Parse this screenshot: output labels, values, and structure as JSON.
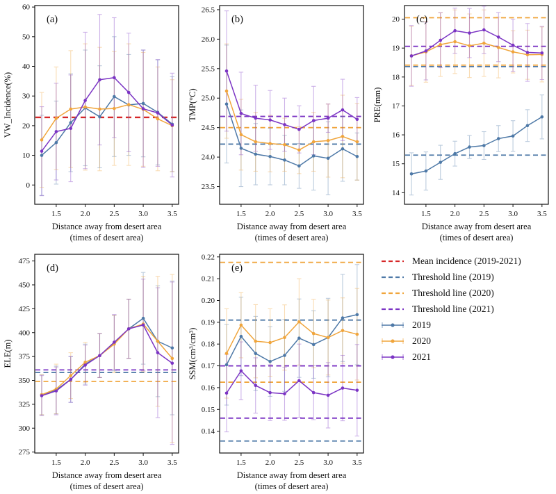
{
  "colors": {
    "s2019": "#4e79a7",
    "s2020": "#f0a53c",
    "s2021": "#7b34c4",
    "mean": "#d62728",
    "axis": "#111111"
  },
  "legend": {
    "items": [
      {
        "type": "dash",
        "color": "mean",
        "label": "Mean incidence (2019-2021)"
      },
      {
        "type": "dash",
        "color": "s2019",
        "label": "Threshold line (2019)"
      },
      {
        "type": "dash",
        "color": "s2020",
        "label": "Threshold line (2020)"
      },
      {
        "type": "dash",
        "color": "s2021",
        "label": "Threshold line (2021)"
      },
      {
        "type": "series",
        "color": "s2019",
        "label": "2019"
      },
      {
        "type": "series",
        "color": "s2020",
        "label": "2020"
      },
      {
        "type": "series",
        "color": "s2021",
        "label": "2021"
      }
    ]
  },
  "chart_data": {
    "shared": {
      "type": "line",
      "x": [
        1.25,
        1.5,
        1.75,
        2.0,
        2.25,
        2.5,
        2.75,
        3.0,
        3.25,
        3.5
      ],
      "xlim": [
        1.13,
        3.61
      ],
      "xticks": [
        1.5,
        2.0,
        2.5,
        3.0,
        3.5
      ],
      "xtick_labels": [
        "1.5",
        "2.0",
        "2.5",
        "3.0",
        "3.5"
      ],
      "xlabel": [
        "Distance away from desert area",
        "(times of desert area)"
      ]
    },
    "panels": [
      {
        "id": "a",
        "panel_label": "(a)",
        "ylabel": "VW_Incidence(%)",
        "ylim": [
          -6.5,
          60.5
        ],
        "yticks": [
          0,
          10,
          20,
          30,
          40,
          50,
          60
        ],
        "ytick_labels": [
          "0",
          "10",
          "20",
          "30",
          "40",
          "50",
          "60"
        ],
        "hlines": [
          {
            "color": "mean",
            "y": 22.8,
            "width": 2.4,
            "label": "Mean incidence (2019-2021)"
          }
        ],
        "series": [
          {
            "name": "2019",
            "color": "s2019",
            "values": [
              10.0,
              14.3,
              21.0,
              26.0,
              23.0,
              29.8,
              27.0,
              27.5,
              24.5,
              20.5
            ],
            "errors": [
              13.5,
              14.0,
              16.5,
              19.5,
              17.2,
              20.2,
              17.0,
              18.0,
              17.7,
              16.0
            ]
          },
          {
            "name": "2020",
            "color": "s2020",
            "values": [
              15.2,
              22.5,
              25.6,
              26.3,
              25.6,
              25.8,
              27.1,
              25.5,
              22.3,
              20.0
            ],
            "errors": [
              16.0,
              17.3,
              19.7,
              21.3,
              20.8,
              19.2,
              20.5,
              19.2,
              17.5,
              15.5
            ]
          },
          {
            "name": "2021",
            "color": "s2021",
            "values": [
              11.4,
              18.0,
              19.1,
              28.5,
              35.5,
              36.2,
              31.2,
              25.7,
              24.3,
              20.2
            ],
            "errors": [
              15.0,
              16.3,
              18.0,
              23.0,
              22.0,
              20.2,
              20.0,
              19.8,
              18.0,
              17.5
            ]
          }
        ]
      },
      {
        "id": "b",
        "panel_label": "(b)",
        "ylabel": "TMP(°C)",
        "ylim": [
          23.2,
          26.57
        ],
        "yticks": [
          23.5,
          24.0,
          24.5,
          25.0,
          25.5,
          26.0,
          26.5
        ],
        "ytick_labels": [
          "23.5",
          "24.0",
          "24.5",
          "25.0",
          "25.5",
          "26.0",
          "26.5"
        ],
        "hlines": [
          {
            "color": "s2021",
            "y": 24.69,
            "label": "Threshold line (2021)"
          },
          {
            "color": "s2020",
            "y": 24.5,
            "label": "Threshold line (2020)"
          },
          {
            "color": "s2019",
            "y": 24.22,
            "label": "Threshold line (2019)"
          }
        ],
        "series": [
          {
            "name": "2019",
            "color": "s2019",
            "values": [
              24.9,
              24.15,
              24.05,
              24.01,
              23.95,
              23.85,
              24.02,
              23.98,
              24.14,
              24.01
            ],
            "errors": [
              1.0,
              0.65,
              0.52,
              0.48,
              0.42,
              0.38,
              0.58,
              0.62,
              0.55,
              0.4
            ]
          },
          {
            "name": "2020",
            "color": "s2020",
            "values": [
              25.12,
              24.38,
              24.26,
              24.23,
              24.21,
              24.12,
              24.26,
              24.28,
              24.35,
              24.26
            ],
            "errors": [
              0.8,
              0.6,
              0.5,
              0.48,
              0.45,
              0.4,
              0.5,
              0.62,
              0.7,
              0.65
            ]
          },
          {
            "name": "2021",
            "color": "s2021",
            "values": [
              25.46,
              24.74,
              24.66,
              24.63,
              24.55,
              24.47,
              24.62,
              24.66,
              24.8,
              24.64
            ],
            "errors": [
              1.02,
              0.7,
              0.56,
              0.5,
              0.45,
              0.4,
              0.58,
              0.24,
              0.52,
              0.37
            ]
          }
        ]
      },
      {
        "id": "c",
        "panel_label": "(c)",
        "ylabel": "PRE(mm)",
        "ylim": [
          13.6,
          20.47
        ],
        "yticks": [
          14,
          15,
          16,
          17,
          18,
          19,
          20
        ],
        "ytick_labels": [
          "14",
          "15",
          "16",
          "17",
          "18",
          "19",
          "20"
        ],
        "hlines": [
          {
            "color": "s2020",
            "y": 20.05,
            "label": "Threshold line (2020)"
          },
          {
            "color": "s2021",
            "y": 19.06,
            "label": "Threshold line (2021)"
          },
          {
            "color": "s2020",
            "y": 18.41,
            "label": "Threshold line (2020)"
          },
          {
            "color": "s2019",
            "y": 18.36,
            "label": "Threshold line (2019)"
          },
          {
            "color": "s2019",
            "y": 15.3,
            "label": "Threshold line (2019)"
          }
        ],
        "series": [
          {
            "name": "2019",
            "color": "s2019",
            "values": [
              14.65,
              14.75,
              15.05,
              15.35,
              15.58,
              15.63,
              15.87,
              15.96,
              16.32,
              16.62
            ],
            "errors": [
              0.73,
              0.66,
              0.59,
              0.43,
              0.4,
              0.48,
              0.45,
              0.53,
              0.55,
              0.76
            ]
          },
          {
            "name": "2020",
            "color": "s2020",
            "values": [
              18.73,
              18.87,
              19.12,
              19.22,
              19.08,
              19.17,
              19.02,
              18.87,
              18.77,
              18.78
            ],
            "errors": [
              1.02,
              1.05,
              1.1,
              1.1,
              1.1,
              1.15,
              1.05,
              0.73,
              0.85,
              0.95
            ]
          },
          {
            "name": "2021",
            "color": "s2021",
            "values": [
              18.73,
              18.9,
              19.27,
              19.6,
              19.52,
              19.63,
              19.38,
              19.1,
              18.85,
              18.83
            ],
            "errors": [
              1.05,
              1.0,
              0.95,
              0.78,
              0.85,
              0.82,
              0.85,
              0.9,
              1.0,
              0.92
            ]
          }
        ]
      },
      {
        "id": "d",
        "panel_label": "(d)",
        "ylabel": "ELE(m)",
        "ylim": [
          274,
          482
        ],
        "yticks": [
          275,
          300,
          325,
          350,
          375,
          400,
          425,
          450,
          475
        ],
        "ytick_labels": [
          "275",
          "300",
          "325",
          "350",
          "375",
          "400",
          "425",
          "450",
          "475"
        ],
        "hlines": [
          {
            "color": "s2021",
            "y": 361.0,
            "label": "Threshold line (2021)"
          },
          {
            "color": "s2019",
            "y": 358.3,
            "label": "Threshold line (2019)"
          },
          {
            "color": "s2020",
            "y": 349.0,
            "label": "Threshold line (2020)"
          }
        ],
        "series": [
          {
            "name": "2019",
            "color": "s2019",
            "values": [
              335,
              340,
              351,
              367,
              376,
              389,
              404,
              415,
              391,
              384
            ],
            "errors": [
              21,
              25,
              24,
              21,
              23,
              29,
              31,
              48,
              58,
              70
            ]
          },
          {
            "name": "2020",
            "color": "s2020",
            "values": [
              335,
              341,
              355,
              369,
              376,
              388,
              404,
              409,
              391,
              373
            ],
            "errors": [
              21,
              26,
              24,
              21,
              23,
              30,
              31,
              50,
              68,
              88
            ]
          },
          {
            "name": "2021",
            "color": "s2021",
            "values": [
              334,
              339,
              351,
              366,
              376,
              390,
              404,
              408,
              379,
              368
            ],
            "errors": [
              21,
              25,
              24,
              21,
              23,
              29,
              31,
              48,
              68,
              85
            ]
          }
        ]
      },
      {
        "id": "e",
        "panel_label": "(e)",
        "ylabel": "SSM(cm³/cm³)",
        "ylim": [
          0.13,
          0.2212
        ],
        "yticks": [
          0.14,
          0.15,
          0.16,
          0.17,
          0.18,
          0.19,
          0.2,
          0.21,
          0.22
        ],
        "ytick_labels": [
          "0.14",
          "0.15",
          "0.16",
          "0.17",
          "0.18",
          "0.19",
          "0.20",
          "0.21",
          "0.22"
        ],
        "hlines": [
          {
            "color": "s2020",
            "y": 0.2175,
            "label": "Threshold line (2020)"
          },
          {
            "color": "s2019",
            "y": 0.191,
            "label": "Threshold line (2019)"
          },
          {
            "color": "s2021",
            "y": 0.17,
            "label": "Threshold line (2021)"
          },
          {
            "color": "s2020",
            "y": 0.1625,
            "label": "Threshold line (2020)"
          },
          {
            "color": "s2021",
            "y": 0.146,
            "label": "Threshold line (2021)"
          },
          {
            "color": "s2019",
            "y": 0.1355,
            "label": "Threshold line (2019)"
          }
        ],
        "series": [
          {
            "name": "2019",
            "color": "s2019",
            "values": [
              0.1705,
              0.1835,
              0.1757,
              0.172,
              0.1748,
              0.1827,
              0.1798,
              0.183,
              0.192,
              0.1935
            ],
            "errors": [
              0.0185,
              0.018,
              0.017,
              0.016,
              0.0165,
              0.018,
              0.0155,
              0.018,
              0.02,
              0.023
            ]
          },
          {
            "name": "2020",
            "color": "s2020",
            "values": [
              0.1757,
              0.1887,
              0.1813,
              0.1807,
              0.183,
              0.1902,
              0.1848,
              0.183,
              0.1862,
              0.1845
            ],
            "errors": [
              0.0205,
              0.015,
              0.0168,
              0.0155,
              0.015,
              0.0198,
              0.0157,
              0.0172,
              0.015,
              0.021
            ]
          },
          {
            "name": "2021",
            "color": "s2021",
            "values": [
              0.1575,
              0.1677,
              0.161,
              0.1577,
              0.1572,
              0.1632,
              0.1577,
              0.1565,
              0.1598,
              0.1588
            ],
            "errors": [
              0.0178,
              0.0133,
              0.0127,
              0.0128,
              0.0122,
              0.0168,
              0.0124,
              0.015,
              0.015,
              0.021
            ]
          }
        ]
      }
    ]
  }
}
